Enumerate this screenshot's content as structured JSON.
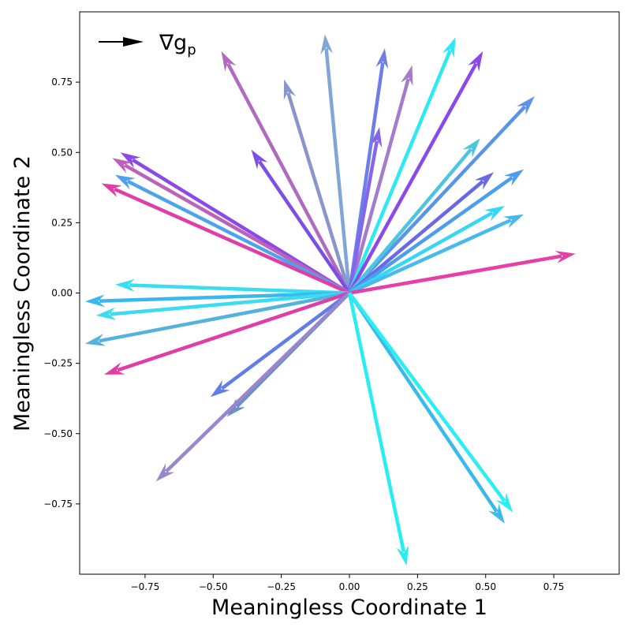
{
  "chart_data": {
    "type": "quiver",
    "xlabel": "Meaningless Coordinate 1",
    "ylabel": "Meaningless Coordinate 2",
    "xlim": [
      -0.99,
      0.99
    ],
    "ylim": [
      -1.0,
      1.0
    ],
    "xticks": [
      -0.75,
      -0.5,
      -0.25,
      0.0,
      0.25,
      0.5,
      0.75
    ],
    "xtick_labels": [
      "−0.75",
      "−0.50",
      "−0.25",
      "0.00",
      "0.25",
      "0.50",
      "0.75"
    ],
    "yticks": [
      -0.75,
      -0.5,
      -0.25,
      0.0,
      0.25,
      0.5,
      0.75
    ],
    "ytick_labels": [
      "−0.75",
      "−0.50",
      "−0.25",
      "0.00",
      "0.25",
      "0.50",
      "0.75"
    ],
    "grid": false,
    "legend": {
      "label": "∇g",
      "subscript": "p",
      "placement": "top-left",
      "color": "#000000"
    },
    "origin": [
      0,
      0
    ],
    "vectors": [
      {
        "dx": -0.09,
        "dy": 0.92,
        "color": "#7fa6d6"
      },
      {
        "dx": -0.47,
        "dy": 0.86,
        "color": "#b06ac0"
      },
      {
        "dx": -0.24,
        "dy": 0.76,
        "color": "#8896cc"
      },
      {
        "dx": -0.36,
        "dy": 0.51,
        "color": "#7b4ee6"
      },
      {
        "dx": 0.13,
        "dy": 0.87,
        "color": "#6d7ee8"
      },
      {
        "dx": 0.23,
        "dy": 0.81,
        "color": "#a47ccb"
      },
      {
        "dx": 0.11,
        "dy": 0.59,
        "color": "#8466ec"
      },
      {
        "dx": 0.39,
        "dy": 0.91,
        "color": "#2ee8f2"
      },
      {
        "dx": 0.49,
        "dy": 0.86,
        "color": "#8a49e8"
      },
      {
        "dx": 0.68,
        "dy": 0.7,
        "color": "#5a94ea"
      },
      {
        "dx": 0.48,
        "dy": 0.55,
        "color": "#4cc6e0"
      },
      {
        "dx": 0.53,
        "dy": 0.43,
        "color": "#6b68e6"
      },
      {
        "dx": 0.64,
        "dy": 0.44,
        "color": "#4b9eee"
      },
      {
        "dx": 0.57,
        "dy": 0.31,
        "color": "#33d8f4"
      },
      {
        "dx": 0.64,
        "dy": 0.28,
        "color": "#49b8ee"
      },
      {
        "dx": 0.83,
        "dy": 0.14,
        "color": "#e83ea8"
      },
      {
        "dx": -0.84,
        "dy": 0.5,
        "color": "#8a49e8"
      },
      {
        "dx": -0.87,
        "dy": 0.48,
        "color": "#bd62b8"
      },
      {
        "dx": -0.86,
        "dy": 0.42,
        "color": "#4ea4ec"
      },
      {
        "dx": -0.91,
        "dy": 0.39,
        "color": "#e03ea6"
      },
      {
        "dx": -0.86,
        "dy": 0.03,
        "color": "#3adcf0"
      },
      {
        "dx": -0.97,
        "dy": -0.03,
        "color": "#3ab8ee"
      },
      {
        "dx": -0.93,
        "dy": -0.08,
        "color": "#3adcf0"
      },
      {
        "dx": -0.97,
        "dy": -0.18,
        "color": "#55b2dc"
      },
      {
        "dx": -0.9,
        "dy": -0.29,
        "color": "#e03ea6"
      },
      {
        "dx": -0.51,
        "dy": -0.37,
        "color": "#5f7ee8"
      },
      {
        "dx": -0.45,
        "dy": -0.44,
        "color": "#6a90c8"
      },
      {
        "dx": -0.71,
        "dy": -0.67,
        "color": "#9a86cc"
      },
      {
        "dx": 0.21,
        "dy": -0.97,
        "color": "#28eef2"
      },
      {
        "dx": 0.57,
        "dy": -0.82,
        "color": "#3abaea"
      },
      {
        "dx": 0.6,
        "dy": -0.78,
        "color": "#2aeef2"
      }
    ]
  }
}
